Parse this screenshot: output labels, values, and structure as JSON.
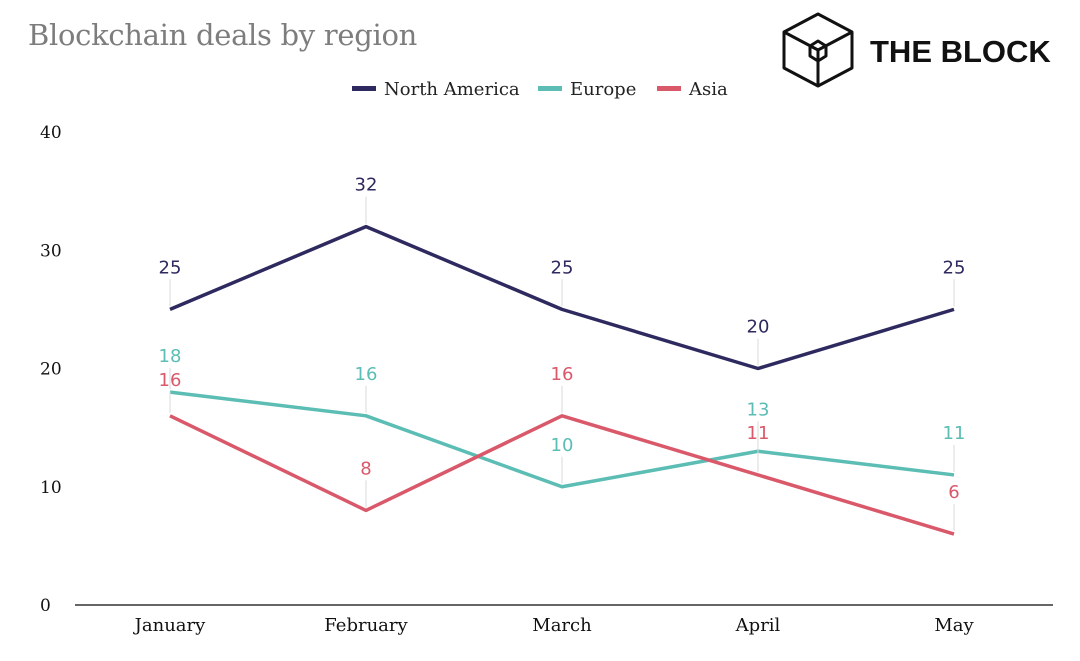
{
  "title": "Blockchain deals by region",
  "brand": {
    "name": "THE BLOCK",
    "icon": "cube-logo-icon"
  },
  "chart_data": {
    "type": "line",
    "title": "Blockchain deals by region",
    "categories": [
      "January",
      "February",
      "March",
      "April",
      "May"
    ],
    "series": [
      {
        "name": "North America",
        "color": "#2e2a5f",
        "values": [
          25,
          32,
          25,
          20,
          25
        ]
      },
      {
        "name": "Europe",
        "color": "#5bbdb4",
        "values": [
          18,
          16,
          10,
          13,
          11
        ]
      },
      {
        "name": "Asia",
        "color": "#d9596b",
        "values": [
          16,
          8,
          16,
          11,
          6
        ]
      }
    ],
    "ylim": [
      0,
      40
    ],
    "yticks": [
      0,
      10,
      20,
      30,
      40
    ],
    "legend": "top-center",
    "grid": false,
    "data_labels": true
  }
}
